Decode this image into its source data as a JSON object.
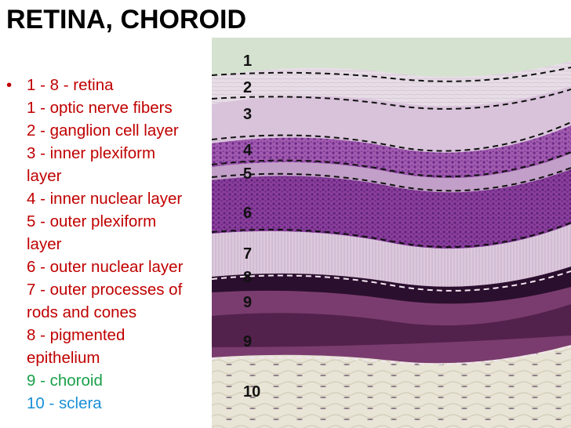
{
  "title": "RETINA, CHOROID",
  "bullet_symbol": "•",
  "legend_lines": [
    {
      "text": "1 - 8 - retina",
      "color": "red"
    },
    {
      "text": "1 - optic nerve fibers",
      "color": "red"
    },
    {
      "text": "2 - ganglion cell layer",
      "color": "red"
    },
    {
      "text": "3 - inner plexiform",
      "color": "red"
    },
    {
      "text": "layer",
      "color": "red"
    },
    {
      "text": "4 - inner nuclear layer",
      "color": "red"
    },
    {
      "text": "5 - outer plexiform",
      "color": "red"
    },
    {
      "text": "layer",
      "color": "red"
    },
    {
      "text": "6 - outer nuclear layer",
      "color": "red"
    },
    {
      "text": "7 - outer processes of",
      "color": "red"
    },
    {
      "text": "rods and cones",
      "color": "red"
    },
    {
      "text": "8 - pigmented",
      "color": "red"
    },
    {
      "text": "epithelium",
      "color": "red"
    },
    {
      "text": "9 - choroid",
      "color": "green"
    },
    {
      "text": "10 - sclera",
      "color": "blue"
    }
  ],
  "layer_labels": [
    "1",
    "2",
    "3",
    "4",
    "5",
    "6",
    "7",
    "8",
    "9",
    "9",
    "10"
  ],
  "colors": {
    "retina_text": "#c00000",
    "choroid_text": "#1aa04a",
    "sclera_text": "#1a8fd8"
  }
}
